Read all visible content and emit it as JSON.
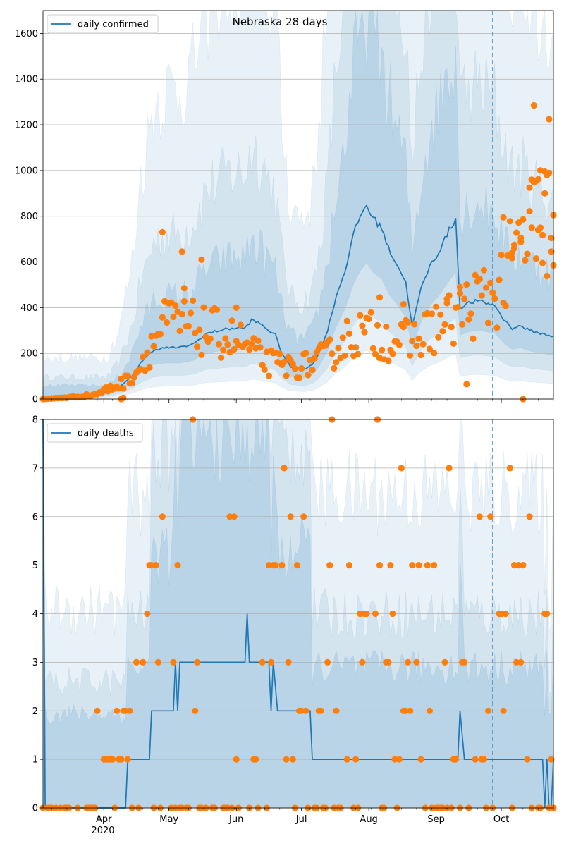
{
  "figure": {
    "title": "Nebraska 28 days",
    "date_ticks": [
      "Apr",
      "May",
      "Jun",
      "Jul",
      "Aug",
      "Sep",
      "Oct"
    ],
    "year_label": "2020",
    "vline_date": "2020-09-27",
    "colors": {
      "line": "#1f77b4",
      "points": "#ff7f0e",
      "band": "#1f77b4",
      "grid": "#b0b0b0",
      "vline": "#5a9bc9"
    }
  },
  "chart_data": [
    {
      "type": "line",
      "name": "confirmed",
      "legend": "daily confirmed",
      "x_start": "2020-03-04",
      "x_end": "2020-10-25",
      "ylim": [
        0,
        1700
      ],
      "yticks": [
        0,
        200,
        400,
        600,
        800,
        1000,
        1200,
        1400,
        1600
      ],
      "line_keypoints": [
        [
          "2020-03-04",
          0
        ],
        [
          "2020-03-20",
          5
        ],
        [
          "2020-03-28",
          20
        ],
        [
          "2020-04-01",
          25
        ],
        [
          "2020-04-08",
          50
        ],
        [
          "2020-04-14",
          100
        ],
        [
          "2020-04-18",
          160
        ],
        [
          "2020-04-24",
          215
        ],
        [
          "2020-04-30",
          225
        ],
        [
          "2020-05-06",
          225
        ],
        [
          "2020-05-12",
          240
        ],
        [
          "2020-05-18",
          285
        ],
        [
          "2020-05-24",
          300
        ],
        [
          "2020-05-30",
          310
        ],
        [
          "2020-06-05",
          310
        ],
        [
          "2020-06-08",
          345
        ],
        [
          "2020-06-12",
          330
        ],
        [
          "2020-06-16",
          300
        ],
        [
          "2020-06-19",
          280
        ],
        [
          "2020-06-22",
          200
        ],
        [
          "2020-06-26",
          140
        ],
        [
          "2020-07-02",
          130
        ],
        [
          "2020-07-06",
          150
        ],
        [
          "2020-07-09",
          200
        ],
        [
          "2020-07-13",
          300
        ],
        [
          "2020-07-17",
          450
        ],
        [
          "2020-07-21",
          560
        ],
        [
          "2020-07-25",
          720
        ],
        [
          "2020-07-28",
          800
        ],
        [
          "2020-07-31",
          850
        ],
        [
          "2020-08-03",
          790
        ],
        [
          "2020-08-07",
          750
        ],
        [
          "2020-08-10",
          660
        ],
        [
          "2020-08-14",
          590
        ],
        [
          "2020-08-18",
          510
        ],
        [
          "2020-08-21",
          320
        ],
        [
          "2020-08-25",
          480
        ],
        [
          "2020-08-29",
          580
        ],
        [
          "2020-09-02",
          640
        ],
        [
          "2020-09-06",
          720
        ],
        [
          "2020-09-10",
          790
        ],
        [
          "2020-09-12",
          400
        ],
        [
          "2020-09-16",
          420
        ],
        [
          "2020-09-20",
          430
        ],
        [
          "2020-09-24",
          420
        ],
        [
          "2020-09-28",
          410
        ],
        [
          "2020-10-02",
          350
        ],
        [
          "2020-10-06",
          310
        ],
        [
          "2020-10-10",
          320
        ],
        [
          "2020-10-14",
          300
        ],
        [
          "2020-10-18",
          290
        ],
        [
          "2020-10-22",
          280
        ],
        [
          "2020-10-25",
          275
        ]
      ],
      "points_keypoints": [
        [
          "2020-03-04",
          0
        ],
        [
          "2020-03-20",
          10
        ],
        [
          "2020-03-28",
          20
        ],
        [
          "2020-04-02",
          40
        ],
        [
          "2020-04-10",
          70
        ],
        [
          "2020-04-16",
          120
        ],
        [
          "2020-04-22",
          220
        ],
        [
          "2020-04-28",
          320
        ],
        [
          "2020-05-04",
          330
        ],
        [
          "2020-05-10",
          320
        ],
        [
          "2020-05-16",
          300
        ],
        [
          "2020-05-22",
          290
        ],
        [
          "2020-05-28",
          270
        ],
        [
          "2020-06-03",
          250
        ],
        [
          "2020-06-09",
          200
        ],
        [
          "2020-06-15",
          160
        ],
        [
          "2020-06-21",
          150
        ],
        [
          "2020-06-27",
          140
        ],
        [
          "2020-07-03",
          150
        ],
        [
          "2020-07-09",
          170
        ],
        [
          "2020-07-15",
          200
        ],
        [
          "2020-07-21",
          260
        ],
        [
          "2020-07-27",
          290
        ],
        [
          "2020-08-02",
          280
        ],
        [
          "2020-08-08",
          270
        ],
        [
          "2020-08-14",
          260
        ],
        [
          "2020-08-20",
          250
        ],
        [
          "2020-08-26",
          280
        ],
        [
          "2020-09-01",
          320
        ],
        [
          "2020-09-07",
          340
        ],
        [
          "2020-09-13",
          380
        ],
        [
          "2020-09-19",
          420
        ],
        [
          "2020-09-25",
          450
        ],
        [
          "2020-10-01",
          500
        ],
        [
          "2020-10-07",
          600
        ],
        [
          "2020-10-13",
          720
        ],
        [
          "2020-10-19",
          780
        ],
        [
          "2020-10-25",
          800
        ]
      ],
      "points_outliers": [
        [
          "2020-04-28",
          730
        ],
        [
          "2020-05-07",
          645
        ],
        [
          "2020-05-16",
          610
        ],
        [
          "2020-05-08",
          485
        ],
        [
          "2020-06-01",
          400
        ],
        [
          "2020-08-06",
          445
        ],
        [
          "2020-08-17",
          415
        ],
        [
          "2020-09-06",
          420
        ],
        [
          "2020-09-12",
          490
        ],
        [
          "2020-09-15",
          65
        ],
        [
          "2020-10-02",
          795
        ],
        [
          "2020-10-06",
          640
        ],
        [
          "2020-10-07",
          660
        ],
        [
          "2020-10-10",
          705
        ],
        [
          "2020-10-14",
          925
        ],
        [
          "2020-10-15",
          960
        ],
        [
          "2020-10-16",
          1285
        ],
        [
          "2020-10-17",
          615
        ],
        [
          "2020-10-18",
          740
        ],
        [
          "2020-10-19",
          750
        ],
        [
          "2020-10-20",
          595
        ],
        [
          "2020-10-21",
          900
        ],
        [
          "2020-10-22",
          980
        ],
        [
          "2020-10-23",
          1225
        ],
        [
          "2020-10-24",
          705
        ],
        [
          "2020-10-25",
          585
        ],
        [
          "2020-10-11",
          0
        ],
        [
          "2020-04-09",
          0
        ],
        [
          "2020-04-10",
          5
        ]
      ]
    },
    {
      "type": "line",
      "name": "deaths",
      "legend": "daily deaths",
      "x_start": "2020-03-04",
      "x_end": "2020-10-25",
      "ylim": [
        0,
        8
      ],
      "yticks": [
        0,
        1,
        2,
        3,
        4,
        5,
        6,
        7,
        8
      ],
      "line_keypoints": [
        [
          "2020-03-04",
          8
        ],
        [
          "2020-03-05",
          0
        ],
        [
          "2020-04-11",
          0
        ],
        [
          "2020-04-12",
          1
        ],
        [
          "2020-04-22",
          1
        ],
        [
          "2020-04-23",
          2
        ],
        [
          "2020-05-03",
          2
        ],
        [
          "2020-05-04",
          3
        ],
        [
          "2020-05-05",
          2
        ],
        [
          "2020-05-06",
          3
        ],
        [
          "2020-05-31",
          3
        ],
        [
          "2020-06-05",
          3
        ],
        [
          "2020-06-06",
          4
        ],
        [
          "2020-06-07",
          3
        ],
        [
          "2020-06-16",
          3
        ],
        [
          "2020-06-17",
          2
        ],
        [
          "2020-06-18",
          3
        ],
        [
          "2020-06-20",
          2
        ],
        [
          "2020-07-05",
          2
        ],
        [
          "2020-07-06",
          1
        ],
        [
          "2020-09-11",
          1
        ],
        [
          "2020-09-12",
          2
        ],
        [
          "2020-09-14",
          1
        ],
        [
          "2020-10-20",
          1
        ],
        [
          "2020-10-21",
          0
        ],
        [
          "2020-10-22",
          1
        ],
        [
          "2020-10-23",
          0
        ],
        [
          "2020-10-24",
          0
        ],
        [
          "2020-10-25",
          1
        ]
      ],
      "points": [
        [
          "2020-03-29",
          2
        ],
        [
          "2020-04-01",
          1
        ],
        [
          "2020-04-02",
          1
        ],
        [
          "2020-04-03",
          1
        ],
        [
          "2020-04-04",
          1
        ],
        [
          "2020-04-05",
          1
        ],
        [
          "2020-04-07",
          2
        ],
        [
          "2020-04-08",
          1
        ],
        [
          "2020-04-09",
          1
        ],
        [
          "2020-04-10",
          2
        ],
        [
          "2020-04-11",
          2
        ],
        [
          "2020-04-12",
          1
        ],
        [
          "2020-04-13",
          2
        ],
        [
          "2020-04-16",
          3
        ],
        [
          "2020-04-19",
          3
        ],
        [
          "2020-04-21",
          4
        ],
        [
          "2020-04-22",
          5
        ],
        [
          "2020-04-23",
          5
        ],
        [
          "2020-04-25",
          5
        ],
        [
          "2020-04-26",
          3
        ],
        [
          "2020-04-28",
          6
        ],
        [
          "2020-05-03",
          3
        ],
        [
          "2020-05-05",
          5
        ],
        [
          "2020-05-12",
          8
        ],
        [
          "2020-05-13",
          2
        ],
        [
          "2020-05-14",
          3
        ],
        [
          "2020-05-29",
          6
        ],
        [
          "2020-05-31",
          6
        ],
        [
          "2020-06-01",
          1
        ],
        [
          "2020-06-09",
          1
        ],
        [
          "2020-06-10",
          1
        ],
        [
          "2020-06-13",
          3
        ],
        [
          "2020-06-16",
          5
        ],
        [
          "2020-06-17",
          3
        ],
        [
          "2020-06-18",
          5
        ],
        [
          "2020-06-19",
          5
        ],
        [
          "2020-06-22",
          5
        ],
        [
          "2020-06-23",
          7
        ],
        [
          "2020-06-24",
          1
        ],
        [
          "2020-06-25",
          3
        ],
        [
          "2020-06-26",
          6
        ],
        [
          "2020-06-27",
          1
        ],
        [
          "2020-06-29",
          5
        ],
        [
          "2020-06-30",
          2
        ],
        [
          "2020-07-01",
          2
        ],
        [
          "2020-07-02",
          6
        ],
        [
          "2020-07-03",
          2
        ],
        [
          "2020-07-09",
          2
        ],
        [
          "2020-07-10",
          2
        ],
        [
          "2020-07-13",
          3
        ],
        [
          "2020-07-14",
          5
        ],
        [
          "2020-07-15",
          8
        ],
        [
          "2020-07-17",
          2
        ],
        [
          "2020-07-22",
          1
        ],
        [
          "2020-07-23",
          5
        ],
        [
          "2020-07-26",
          1
        ],
        [
          "2020-07-28",
          4
        ],
        [
          "2020-07-29",
          3
        ],
        [
          "2020-07-30",
          4
        ],
        [
          "2020-07-31",
          4
        ],
        [
          "2020-08-04",
          4
        ],
        [
          "2020-08-05",
          8
        ],
        [
          "2020-08-06",
          5
        ],
        [
          "2020-08-09",
          3
        ],
        [
          "2020-08-10",
          3
        ],
        [
          "2020-08-11",
          5
        ],
        [
          "2020-08-12",
          4
        ],
        [
          "2020-08-13",
          1
        ],
        [
          "2020-08-15",
          1
        ],
        [
          "2020-08-16",
          7
        ],
        [
          "2020-08-17",
          2
        ],
        [
          "2020-08-18",
          2
        ],
        [
          "2020-08-19",
          3
        ],
        [
          "2020-08-20",
          2
        ],
        [
          "2020-08-21",
          5
        ],
        [
          "2020-08-23",
          3
        ],
        [
          "2020-08-24",
          5
        ],
        [
          "2020-08-25",
          1
        ],
        [
          "2020-08-28",
          5
        ],
        [
          "2020-08-29",
          2
        ],
        [
          "2020-08-31",
          5
        ],
        [
          "2020-09-05",
          3
        ],
        [
          "2020-09-07",
          7
        ],
        [
          "2020-09-09",
          1
        ],
        [
          "2020-09-10",
          1
        ],
        [
          "2020-09-13",
          3
        ],
        [
          "2020-09-14",
          3
        ],
        [
          "2020-09-19",
          1
        ],
        [
          "2020-09-21",
          6
        ],
        [
          "2020-09-22",
          1
        ],
        [
          "2020-09-23",
          1
        ],
        [
          "2020-09-25",
          2
        ],
        [
          "2020-09-26",
          6
        ],
        [
          "2020-09-30",
          4
        ],
        [
          "2020-10-01",
          4
        ],
        [
          "2020-10-02",
          2
        ],
        [
          "2020-10-03",
          4
        ],
        [
          "2020-10-05",
          7
        ],
        [
          "2020-10-07",
          5
        ],
        [
          "2020-10-08",
          3
        ],
        [
          "2020-10-09",
          5
        ],
        [
          "2020-10-10",
          3
        ],
        [
          "2020-10-11",
          5
        ],
        [
          "2020-10-13",
          1
        ],
        [
          "2020-10-14",
          6
        ],
        [
          "2020-10-21",
          4
        ],
        [
          "2020-10-22",
          4
        ],
        [
          "2020-10-24",
          1
        ]
      ]
    }
  ]
}
